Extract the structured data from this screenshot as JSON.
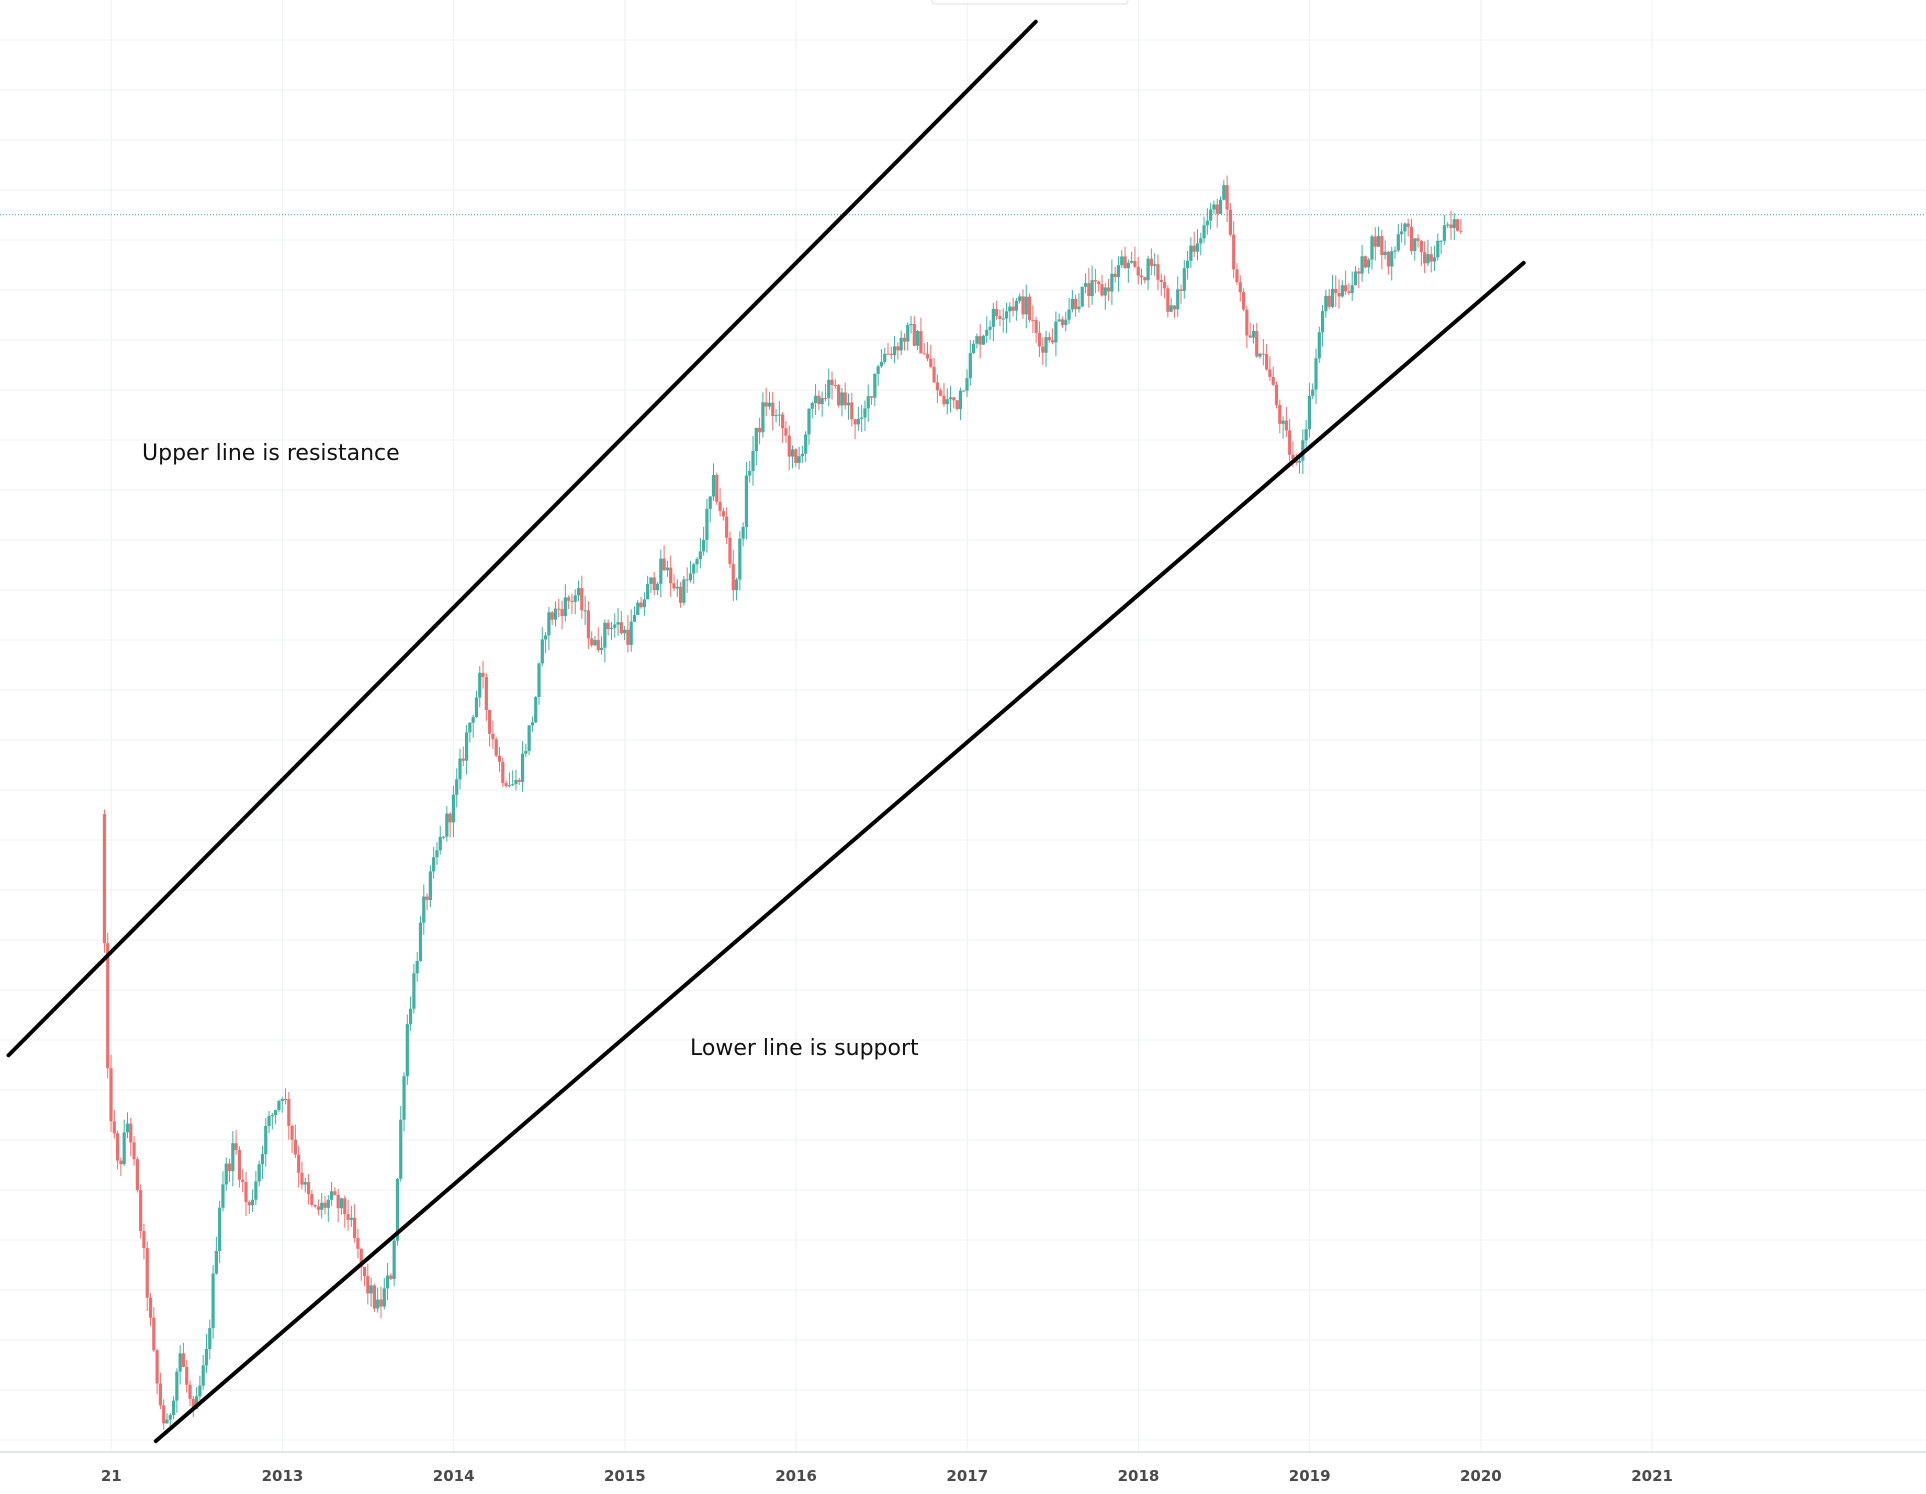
{
  "chart_data": {
    "type": "candlestick",
    "title": "",
    "xlabel": "",
    "ylabel": "",
    "grid": true,
    "x_tick_labels": [
      "21",
      "2013",
      "2014",
      "2015",
      "2016",
      "2017",
      "2018",
      "2019",
      "2020",
      "2021"
    ],
    "x_tick_years": [
      2012.0,
      2013.0,
      2014.0,
      2015.0,
      2016.0,
      2017.0,
      2018.0,
      2019.0,
      2020.0,
      2021.0
    ],
    "x_range_years": [
      2011.35,
      2022.6
    ],
    "y_range_relative": [
      0,
      100
    ],
    "price_path": [
      [
        2011.96,
        46
      ],
      [
        2012.0,
        26
      ],
      [
        2012.06,
        20
      ],
      [
        2012.12,
        24
      ],
      [
        2012.2,
        15
      ],
      [
        2012.28,
        5
      ],
      [
        2012.34,
        1
      ],
      [
        2012.42,
        7
      ],
      [
        2012.5,
        2
      ],
      [
        2012.58,
        7
      ],
      [
        2012.66,
        19
      ],
      [
        2012.74,
        22
      ],
      [
        2012.82,
        17
      ],
      [
        2012.92,
        23
      ],
      [
        2013.02,
        26
      ],
      [
        2013.12,
        20
      ],
      [
        2013.2,
        17
      ],
      [
        2013.3,
        18
      ],
      [
        2013.4,
        17
      ],
      [
        2013.5,
        12
      ],
      [
        2013.58,
        10
      ],
      [
        2013.66,
        13
      ],
      [
        2013.74,
        30
      ],
      [
        2013.84,
        39
      ],
      [
        2013.94,
        44
      ],
      [
        2014.02,
        47
      ],
      [
        2014.1,
        52
      ],
      [
        2014.18,
        56
      ],
      [
        2014.22,
        53
      ],
      [
        2014.3,
        49
      ],
      [
        2014.38,
        48
      ],
      [
        2014.48,
        53
      ],
      [
        2014.56,
        60
      ],
      [
        2014.64,
        61
      ],
      [
        2014.74,
        62
      ],
      [
        2014.84,
        58
      ],
      [
        2014.94,
        60
      ],
      [
        2015.04,
        59
      ],
      [
        2015.14,
        62
      ],
      [
        2015.24,
        64
      ],
      [
        2015.34,
        62
      ],
      [
        2015.44,
        64
      ],
      [
        2015.54,
        70
      ],
      [
        2015.6,
        67
      ],
      [
        2015.66,
        62
      ],
      [
        2015.74,
        71
      ],
      [
        2015.84,
        76
      ],
      [
        2015.94,
        74
      ],
      [
        2016.02,
        71
      ],
      [
        2016.1,
        75
      ],
      [
        2016.2,
        77
      ],
      [
        2016.3,
        76
      ],
      [
        2016.4,
        74
      ],
      [
        2016.5,
        79
      ],
      [
        2016.6,
        80
      ],
      [
        2016.68,
        81
      ],
      [
        2016.76,
        80
      ],
      [
        2016.86,
        76
      ],
      [
        2016.96,
        76
      ],
      [
        2017.06,
        80
      ],
      [
        2017.16,
        82
      ],
      [
        2017.26,
        83
      ],
      [
        2017.36,
        83
      ],
      [
        2017.44,
        80
      ],
      [
        2017.52,
        81
      ],
      [
        2017.62,
        83
      ],
      [
        2017.72,
        84
      ],
      [
        2017.82,
        84
      ],
      [
        2017.92,
        86
      ],
      [
        2018.02,
        85
      ],
      [
        2018.12,
        86
      ],
      [
        2018.22,
        82
      ],
      [
        2018.32,
        87
      ],
      [
        2018.42,
        89
      ],
      [
        2018.52,
        91
      ],
      [
        2018.58,
        85
      ],
      [
        2018.66,
        81
      ],
      [
        2018.76,
        79
      ],
      [
        2018.86,
        74
      ],
      [
        2018.94,
        71
      ],
      [
        2019.02,
        76
      ],
      [
        2019.1,
        83
      ],
      [
        2019.2,
        84
      ],
      [
        2019.3,
        85
      ],
      [
        2019.4,
        88
      ],
      [
        2019.48,
        86
      ],
      [
        2019.56,
        89
      ],
      [
        2019.64,
        87
      ],
      [
        2019.72,
        86
      ],
      [
        2019.8,
        88
      ],
      [
        2019.9,
        89
      ]
    ],
    "trendlines": [
      {
        "start": [
          2011.4,
          28.5
        ],
        "end": [
          2017.4,
          103.5
        ]
      },
      {
        "start": [
          2012.26,
          0.5
        ],
        "end": [
          2020.25,
          86
        ]
      }
    ],
    "current_price_level": 89.5,
    "annotations": [
      {
        "text": "Upper line is resistance"
      },
      {
        "text": "Lower line is support"
      }
    ],
    "colors": {
      "up": "#3fb0a1",
      "down": "#ec6f6e",
      "trendline": "#000000",
      "grid": "#eef1f4",
      "price_line": "#3aa59e",
      "axis_text": "#4a4a4a"
    }
  }
}
